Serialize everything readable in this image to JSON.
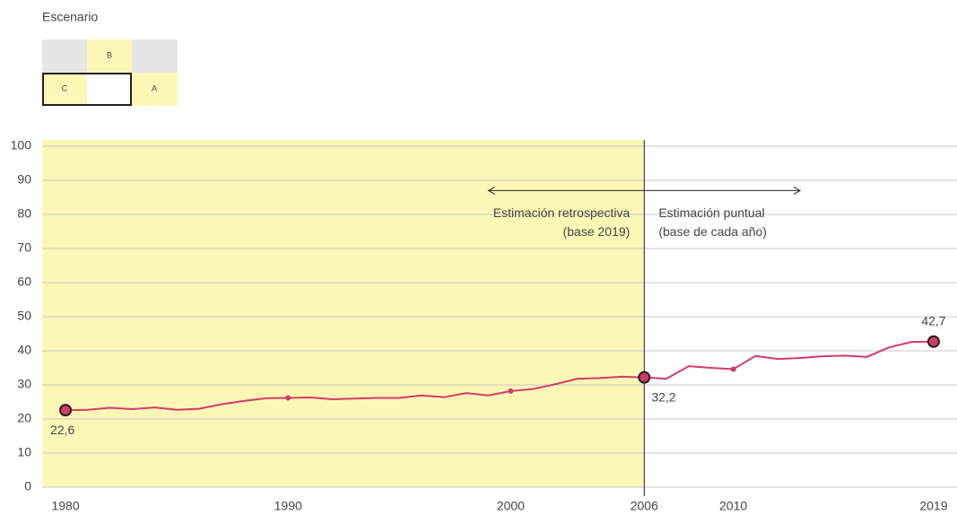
{
  "selector": {
    "title": "Escenario",
    "cells": [
      "B",
      "C",
      "A"
    ],
    "selected": "C"
  },
  "chart_data": {
    "type": "line",
    "x": [
      1980,
      1981,
      1982,
      1983,
      1984,
      1985,
      1986,
      1987,
      1988,
      1989,
      1990,
      1991,
      1992,
      1993,
      1994,
      1995,
      1996,
      1997,
      1998,
      1999,
      2000,
      2001,
      2002,
      2003,
      2004,
      2005,
      2006,
      2007,
      2008,
      2009,
      2010,
      2011,
      2012,
      2013,
      2014,
      2015,
      2016,
      2017,
      2018,
      2019
    ],
    "series": [
      {
        "color": "#d23c69",
        "values": [
          22.6,
          22.7,
          23.3,
          22.9,
          23.4,
          22.7,
          23.0,
          24.3,
          25.3,
          26.1,
          26.2,
          26.3,
          25.8,
          26.0,
          26.2,
          26.2,
          26.9,
          26.4,
          27.6,
          26.9,
          28.2,
          28.8,
          30.2,
          31.8,
          32.0,
          32.4,
          32.2,
          31.8,
          35.5,
          35.0,
          34.6,
          38.5,
          37.6,
          37.9,
          38.4,
          38.6,
          38.2,
          41.0,
          42.6,
          42.7
        ],
        "value_labels": [
          "22,6",
          null,
          null,
          null,
          null,
          null,
          null,
          null,
          null,
          null,
          null,
          null,
          null,
          null,
          null,
          null,
          null,
          null,
          null,
          null,
          null,
          null,
          null,
          null,
          null,
          null,
          "32,2",
          null,
          null,
          null,
          null,
          null,
          null,
          null,
          null,
          null,
          null,
          null,
          null,
          "42,7"
        ]
      }
    ],
    "highlight_x": [
      1980,
      2006,
      2019
    ],
    "dot_x": [
      1990,
      2000,
      2010
    ],
    "xlim": [
      1978.95,
      2020.05
    ],
    "xticks": [
      1980,
      1990,
      2000,
      2006,
      2010,
      2019
    ],
    "ylim": [
      0,
      100
    ],
    "yticks": [
      0,
      10,
      20,
      30,
      40,
      50,
      60,
      70,
      80,
      90,
      100
    ],
    "grid": true,
    "shade_to": 2006,
    "shade_color": "#fdf7b6",
    "divider_x": 2006,
    "arrow": {
      "x": [
        1999,
        2013
      ],
      "y": 87
    },
    "annotations": [
      {
        "lines": [
          "Estimación retrospectiva",
          "(base 2019)"
        ],
        "anchor": "end"
      },
      {
        "lines": [
          "Estimación puntual",
          "(base de cada año)"
        ],
        "anchor": "start"
      }
    ]
  }
}
